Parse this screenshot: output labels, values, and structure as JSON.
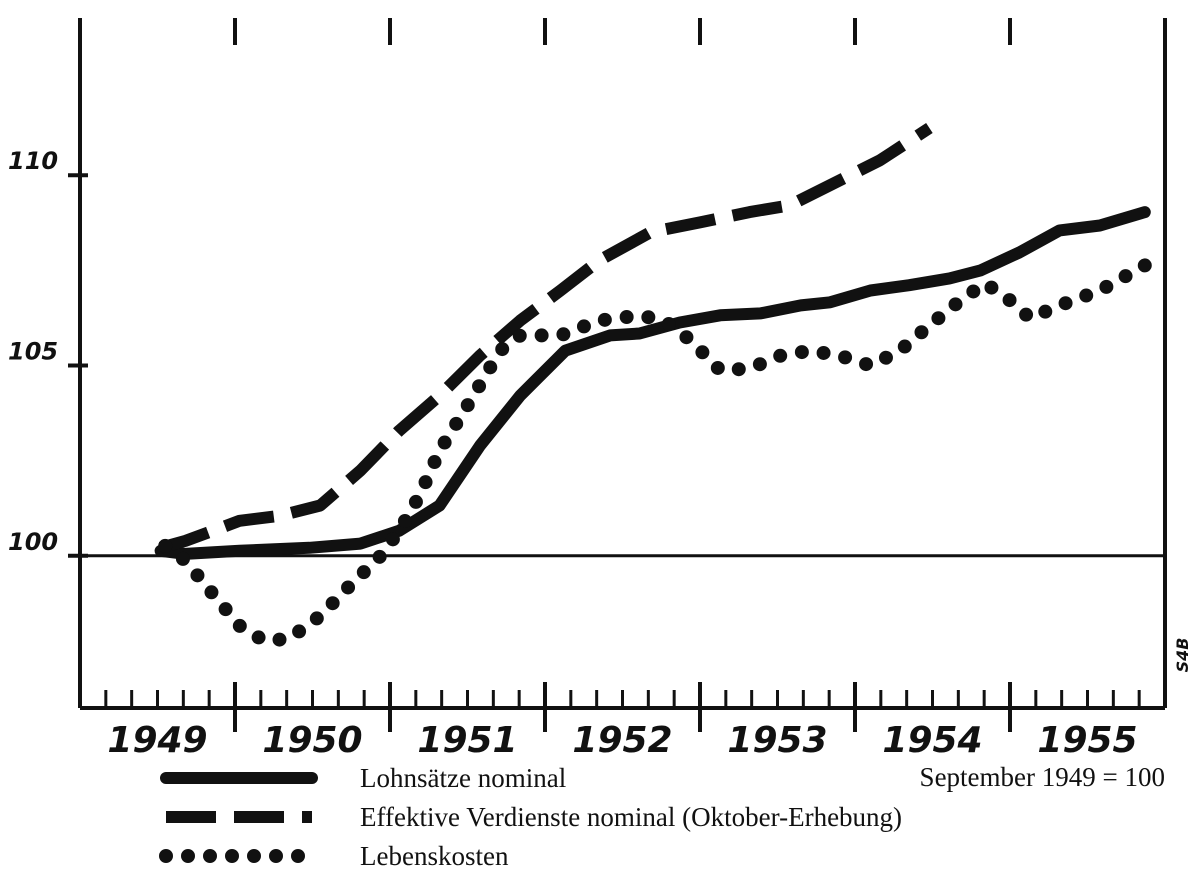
{
  "chart_data": {
    "type": "line",
    "annotation": "September 1949 = 100",
    "side_label": "S4B",
    "xlim": [
      1949,
      1956
    ],
    "xticks": [
      {
        "value": 1949.5,
        "label": "1949"
      },
      {
        "value": 1950.5,
        "label": "1950"
      },
      {
        "value": 1951.5,
        "label": "1951"
      },
      {
        "value": 1952.5,
        "label": "1952"
      },
      {
        "value": 1953.5,
        "label": "1953"
      },
      {
        "value": 1954.5,
        "label": "1954"
      },
      {
        "value": 1955.5,
        "label": "1955"
      }
    ],
    "ylim": [
      96,
      114
    ],
    "yticks": [
      100,
      105,
      110
    ],
    "reference_line": 100,
    "series": [
      {
        "name": "Lohnsätze nominal",
        "color": "#111111",
        "dash": "solid",
        "x": [
          1949.52,
          1949.68,
          1950.03,
          1950.48,
          1950.81,
          1951.06,
          1951.32,
          1951.58,
          1951.84,
          1952.13,
          1952.42,
          1952.61,
          1952.87,
          1953.13,
          1953.39,
          1953.65,
          1953.84,
          1954.1,
          1954.35,
          1954.61,
          1954.81,
          1955.06,
          1955.32,
          1955.58,
          1955.87
        ],
        "values": [
          100.13,
          100.05,
          100.13,
          100.21,
          100.32,
          100.66,
          101.32,
          102.89,
          104.21,
          105.39,
          105.79,
          105.84,
          106.13,
          106.32,
          106.37,
          106.58,
          106.66,
          106.97,
          107.11,
          107.29,
          107.5,
          107.97,
          108.55,
          108.68,
          109.03
        ]
      },
      {
        "name": "Effektive Verdienste nominal (Oktober-Erhebung)",
        "color": "#111111",
        "dash": "dashed",
        "x": [
          1949.52,
          1949.68,
          1950.03,
          1950.29,
          1950.55,
          1950.81,
          1951.06,
          1951.32,
          1951.58,
          1951.84,
          1952.1,
          1952.35,
          1952.68,
          1953.0,
          1953.32,
          1953.58,
          1953.84,
          1954.16,
          1954.48
        ],
        "values": [
          100.21,
          100.39,
          100.92,
          101.05,
          101.32,
          102.24,
          103.29,
          104.21,
          105.26,
          106.18,
          106.97,
          107.76,
          108.5,
          108.76,
          109.03,
          109.21,
          109.74,
          110.39,
          111.24
        ]
      },
      {
        "name": "Lebenskosten",
        "color": "#111111",
        "dash": "dotted",
        "x": [
          1949.55,
          1949.68,
          1949.84,
          1950.03,
          1950.19,
          1950.35,
          1950.55,
          1950.74,
          1950.94,
          1951.06,
          1951.19,
          1951.32,
          1951.52,
          1951.71,
          1951.84,
          1952.1,
          1952.35,
          1952.61,
          1952.77,
          1952.94,
          1953.13,
          1953.32,
          1953.52,
          1953.71,
          1953.9,
          1954.1,
          1954.29,
          1954.48,
          1954.68,
          1954.84,
          1955.0,
          1955.13,
          1955.32,
          1955.58,
          1955.87
        ],
        "values": [
          100.26,
          99.87,
          99.08,
          98.16,
          97.76,
          97.82,
          98.42,
          99.21,
          100.0,
          100.66,
          101.58,
          102.76,
          104.08,
          105.39,
          105.79,
          105.79,
          106.18,
          106.32,
          106.18,
          105.66,
          104.87,
          104.92,
          105.26,
          105.39,
          105.26,
          105.0,
          105.39,
          106.05,
          106.71,
          107.16,
          106.71,
          106.24,
          106.58,
          106.97,
          107.63
        ]
      }
    ]
  }
}
